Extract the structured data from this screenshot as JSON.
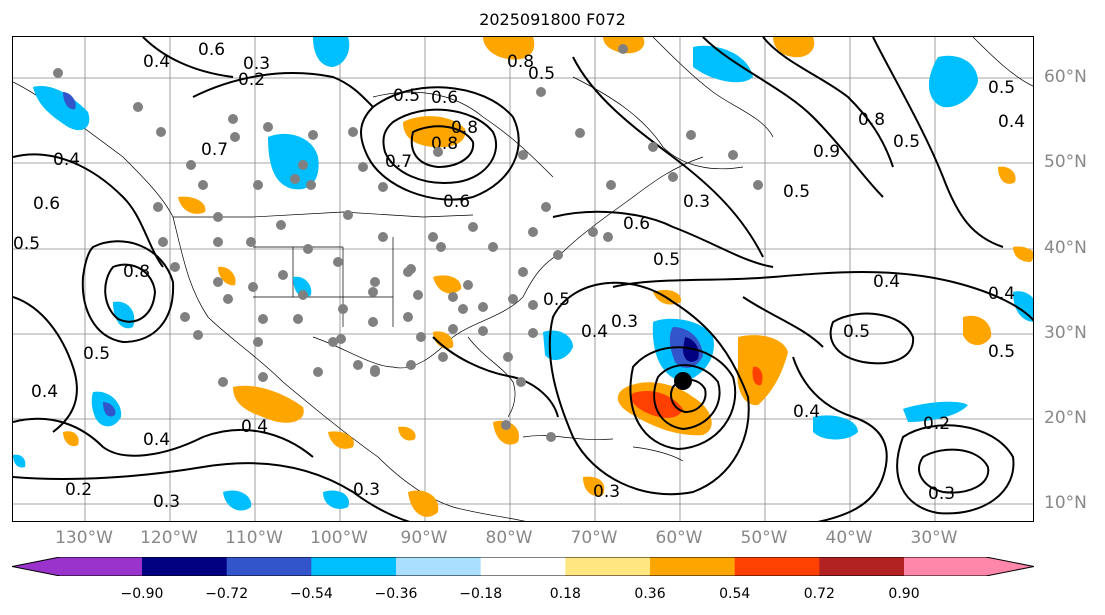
{
  "title": "2025091800 F072",
  "lon_labels": [
    "130°W",
    "120°W",
    "110°W",
    "100°W",
    "90°W",
    "80°W",
    "70°W",
    "60°W",
    "50°W",
    "40°W",
    "30°W"
  ],
  "lat_labels": [
    "60°N",
    "50°N",
    "40°N",
    "30°N",
    "20°N",
    "10°N"
  ],
  "contour_labels": [
    "0.6",
    "0.4",
    "0.2",
    "0.5",
    "0.6",
    "0.8",
    "0.7",
    "0.8",
    "0.6",
    "0.5",
    "0.3",
    "0.6",
    "0.5",
    "0.3",
    "0.4",
    "0.5",
    "0.4",
    "0.2",
    "0.3",
    "0.4",
    "0.5",
    "0.3",
    "0.4",
    "0.5",
    "0.2",
    "0.3",
    "0.4",
    "0.5",
    "0.4",
    "0.6",
    "0.8",
    "0.4",
    "0.5",
    "0.4",
    "0.3",
    "0.4",
    "0.5",
    "0.9",
    "0.8",
    "0.8",
    "0.5",
    "0.3",
    "0.7",
    "0.5"
  ],
  "colorbar": {
    "ticks": [
      "−0.90",
      "−0.72",
      "−0.54",
      "−0.36",
      "−0.18",
      "0.18",
      "0.36",
      "0.54",
      "0.72",
      "0.90"
    ],
    "colors": {
      "under": "#9933cc",
      "bins": [
        "#000080",
        "#3355cc",
        "#00bfff",
        "#aadfff",
        "#ffffff",
        "#ffe680",
        "#ffa500",
        "#ff4000",
        "#b22222"
      ],
      "over": "#ff88aa"
    }
  },
  "colors": {
    "pos_fill": "#ffa500",
    "pos_strong": "#ff4000",
    "neg_fill": "#00bfff",
    "neg_strong": "#3355cc",
    "neg_very": "#000080",
    "grid": "#888888",
    "station_dot": "#808080"
  }
}
